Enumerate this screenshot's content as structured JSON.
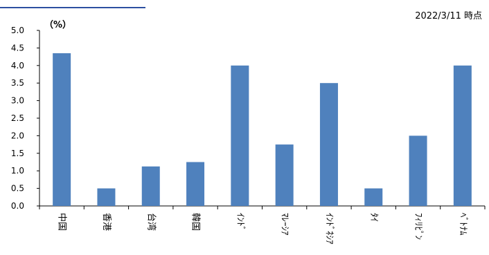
{
  "header": {
    "title_fragment": "",
    "as_of": "2022/3/11 時点",
    "unit": "（%）"
  },
  "colors": {
    "bar": "#4f81bd",
    "axis": "#000000",
    "title": "#2c4fa0"
  },
  "chart_data": {
    "type": "bar",
    "categories": [
      "中国",
      "香港",
      "台湾",
      "韓国",
      "ｲﾝﾄﾞ",
      "ﾏﾚｰｼｱ",
      "ｲﾝﾄﾞﾈｼｱ",
      "ﾀｲ",
      "ﾌｨﾘﾋﾟﾝ",
      "ﾍﾞﾄﾅﾑ"
    ],
    "values": [
      4.35,
      0.5,
      1.125,
      1.25,
      4.0,
      1.75,
      3.5,
      0.5,
      2.0,
      4.0
    ],
    "ylim": [
      0,
      5
    ],
    "yticks": [
      "0.0",
      "0.5",
      "1.0",
      "1.5",
      "2.0",
      "2.5",
      "3.0",
      "3.5",
      "4.0",
      "4.5",
      "5.0"
    ],
    "ylabel": "（%）",
    "xlabel": "",
    "title": "",
    "grid": false,
    "legend": "none"
  }
}
